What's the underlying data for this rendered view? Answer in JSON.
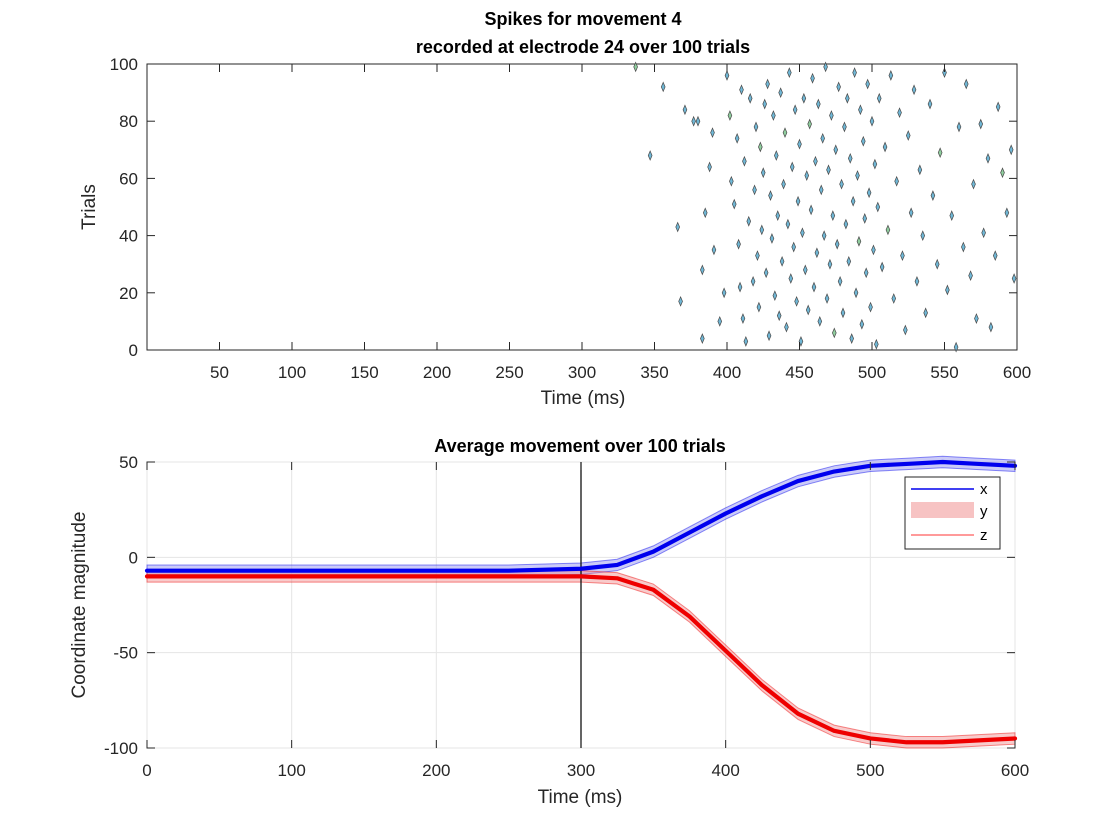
{
  "figure": {
    "background": "#ffffff"
  },
  "chart_data": [
    {
      "type": "scatter",
      "title": "Spikes for movement 4\nrecorded at electrode 24 over 100 trials",
      "title_lines": [
        "Spikes for movement 4",
        "recorded at electrode 24 over 100 trials"
      ],
      "xlabel": "Time (ms)",
      "ylabel": "Trials",
      "xlim": [
        0,
        600
      ],
      "ylim": [
        0,
        100
      ],
      "xticks": [
        50,
        100,
        150,
        200,
        250,
        300,
        350,
        400,
        450,
        500,
        550,
        600
      ],
      "yticks": [
        0,
        20,
        40,
        60,
        80,
        100
      ],
      "grid": false,
      "marker": "diamond",
      "marker_face_colors": [
        "#6fb7d6",
        "#8fce9e"
      ],
      "marker_edge_color": "#4a4a4a",
      "points": [
        [
          337,
          99
        ],
        [
          356,
          92
        ],
        [
          347,
          68
        ],
        [
          366,
          43
        ],
        [
          368,
          17
        ],
        [
          371,
          84
        ],
        [
          377,
          80
        ],
        [
          380,
          80
        ],
        [
          383,
          28
        ],
        [
          383,
          4
        ],
        [
          385,
          48
        ],
        [
          388,
          64
        ],
        [
          390,
          76
        ],
        [
          391,
          35
        ],
        [
          395,
          10
        ],
        [
          398,
          20
        ],
        [
          400,
          96
        ],
        [
          402,
          82
        ],
        [
          403,
          59
        ],
        [
          405,
          51
        ],
        [
          407,
          74
        ],
        [
          408,
          37
        ],
        [
          409,
          22
        ],
        [
          410,
          91
        ],
        [
          411,
          11
        ],
        [
          412,
          66
        ],
        [
          413,
          3
        ],
        [
          415,
          45
        ],
        [
          416,
          88
        ],
        [
          418,
          24
        ],
        [
          419,
          56
        ],
        [
          420,
          78
        ],
        [
          421,
          33
        ],
        [
          422,
          15
        ],
        [
          423,
          71
        ],
        [
          424,
          42
        ],
        [
          425,
          62
        ],
        [
          426,
          86
        ],
        [
          427,
          27
        ],
        [
          428,
          93
        ],
        [
          429,
          5
        ],
        [
          430,
          54
        ],
        [
          431,
          39
        ],
        [
          432,
          82
        ],
        [
          433,
          19
        ],
        [
          434,
          68
        ],
        [
          435,
          47
        ],
        [
          436,
          12
        ],
        [
          437,
          90
        ],
        [
          438,
          31
        ],
        [
          439,
          58
        ],
        [
          440,
          76
        ],
        [
          441,
          8
        ],
        [
          442,
          44
        ],
        [
          443,
          97
        ],
        [
          444,
          25
        ],
        [
          445,
          64
        ],
        [
          446,
          36
        ],
        [
          447,
          84
        ],
        [
          448,
          17
        ],
        [
          449,
          52
        ],
        [
          450,
          72
        ],
        [
          451,
          3
        ],
        [
          452,
          41
        ],
        [
          453,
          88
        ],
        [
          454,
          28
        ],
        [
          455,
          61
        ],
        [
          456,
          14
        ],
        [
          457,
          79
        ],
        [
          458,
          49
        ],
        [
          459,
          95
        ],
        [
          460,
          22
        ],
        [
          461,
          66
        ],
        [
          462,
          34
        ],
        [
          463,
          86
        ],
        [
          464,
          10
        ],
        [
          465,
          56
        ],
        [
          466,
          74
        ],
        [
          467,
          40
        ],
        [
          468,
          99
        ],
        [
          469,
          18
        ],
        [
          470,
          63
        ],
        [
          471,
          30
        ],
        [
          472,
          82
        ],
        [
          473,
          47
        ],
        [
          474,
          6
        ],
        [
          475,
          70
        ],
        [
          476,
          37
        ],
        [
          477,
          92
        ],
        [
          478,
          24
        ],
        [
          479,
          58
        ],
        [
          480,
          13
        ],
        [
          481,
          78
        ],
        [
          482,
          44
        ],
        [
          483,
          88
        ],
        [
          484,
          31
        ],
        [
          485,
          67
        ],
        [
          486,
          4
        ],
        [
          487,
          52
        ],
        [
          488,
          97
        ],
        [
          489,
          20
        ],
        [
          490,
          61
        ],
        [
          491,
          38
        ],
        [
          492,
          84
        ],
        [
          493,
          9
        ],
        [
          494,
          73
        ],
        [
          495,
          46
        ],
        [
          496,
          27
        ],
        [
          497,
          93
        ],
        [
          498,
          55
        ],
        [
          499,
          15
        ],
        [
          500,
          80
        ],
        [
          501,
          35
        ],
        [
          502,
          65
        ],
        [
          503,
          2
        ],
        [
          504,
          50
        ],
        [
          505,
          88
        ],
        [
          507,
          29
        ],
        [
          509,
          71
        ],
        [
          511,
          42
        ],
        [
          513,
          96
        ],
        [
          515,
          18
        ],
        [
          517,
          59
        ],
        [
          519,
          83
        ],
        [
          521,
          33
        ],
        [
          523,
          7
        ],
        [
          525,
          75
        ],
        [
          527,
          48
        ],
        [
          529,
          91
        ],
        [
          531,
          24
        ],
        [
          533,
          63
        ],
        [
          535,
          40
        ],
        [
          537,
          13
        ],
        [
          540,
          86
        ],
        [
          542,
          54
        ],
        [
          545,
          30
        ],
        [
          547,
          69
        ],
        [
          550,
          97
        ],
        [
          552,
          21
        ],
        [
          555,
          47
        ],
        [
          558,
          1
        ],
        [
          560,
          78
        ],
        [
          563,
          36
        ],
        [
          565,
          93
        ],
        [
          568,
          26
        ],
        [
          570,
          58
        ],
        [
          572,
          11
        ],
        [
          575,
          79
        ],
        [
          577,
          41
        ],
        [
          580,
          67
        ],
        [
          582,
          8
        ],
        [
          585,
          33
        ],
        [
          587,
          85
        ],
        [
          590,
          62
        ],
        [
          593,
          48
        ],
        [
          596,
          70
        ],
        [
          598,
          25
        ]
      ]
    },
    {
      "type": "line",
      "title": "Average movement over 100 trials",
      "xlabel": "Time (ms)",
      "ylabel": "Coordinate magnitude",
      "xlim": [
        0,
        600
      ],
      "ylim": [
        -100,
        50
      ],
      "xticks": [
        0,
        100,
        200,
        300,
        400,
        500,
        600
      ],
      "yticks": [
        -100,
        -50,
        0,
        50
      ],
      "grid": true,
      "legend_placement": "top-right",
      "vertical_marker_x": 300,
      "x": [
        0,
        50,
        100,
        150,
        200,
        250,
        300,
        325,
        350,
        375,
        400,
        425,
        450,
        475,
        500,
        525,
        550,
        575,
        600
      ],
      "series": [
        {
          "name": "x",
          "color": "#0000ee",
          "band_color": "#8c8cf0",
          "values": [
            -7,
            -7,
            -7,
            -7,
            -7,
            -7,
            -6,
            -4,
            3,
            13,
            23,
            32,
            40,
            45,
            48,
            49,
            50,
            49,
            48
          ],
          "band": 3
        },
        {
          "name": "z",
          "color": "#ee0000",
          "band_color": "#f08c8c",
          "values": [
            -10,
            -10,
            -10,
            -10,
            -10,
            -10,
            -10,
            -11,
            -17,
            -31,
            -49,
            -67,
            -82,
            -91,
            -95,
            -97,
            -97,
            -96,
            -95
          ],
          "band": 3
        }
      ],
      "legend": [
        {
          "label": "x",
          "kind": "line",
          "color": "#0000ee"
        },
        {
          "label": "y",
          "kind": "patch",
          "color": "#f7c3c3"
        },
        {
          "label": "z",
          "kind": "line",
          "color": "#ff5d5d"
        }
      ]
    }
  ]
}
